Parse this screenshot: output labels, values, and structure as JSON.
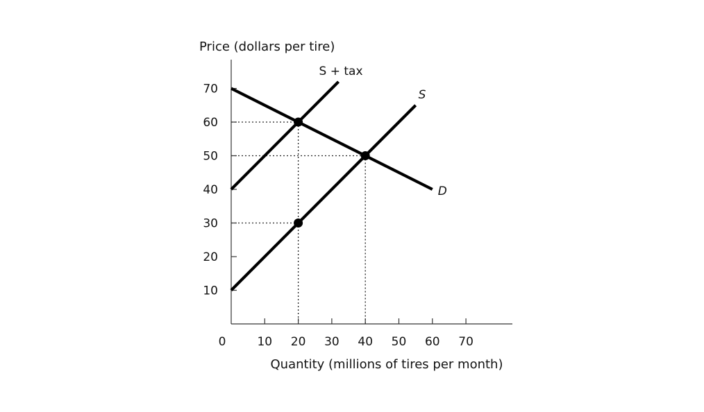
{
  "chart_data": {
    "type": "line",
    "xlabel": "Quantity (millions of tires per month)",
    "ylabel": "Price (dollars per tire)",
    "xlim": [
      0,
      80
    ],
    "ylim": [
      0,
      80
    ],
    "origin_label": "0",
    "x_ticks": [
      10,
      20,
      30,
      40,
      50,
      60,
      70
    ],
    "y_ticks": [
      10,
      20,
      30,
      40,
      50,
      60,
      70
    ],
    "grid": false,
    "series": [
      {
        "name": "D",
        "x": [
          0,
          60
        ],
        "y": [
          70,
          40
        ]
      },
      {
        "name": "S",
        "x": [
          0,
          55
        ],
        "y": [
          10,
          65
        ]
      },
      {
        "name": "S + tax",
        "x": [
          0,
          32
        ],
        "y": [
          40,
          72
        ]
      }
    ],
    "points": [
      {
        "x": 20,
        "y": 60
      },
      {
        "x": 40,
        "y": 50
      },
      {
        "x": 20,
        "y": 30
      }
    ],
    "guides": [
      {
        "x": 20,
        "y": 60
      },
      {
        "x": 40,
        "y": 50
      },
      {
        "x": 20,
        "y": 30
      }
    ],
    "colors": {
      "line": "#000000",
      "axis": "#333333"
    }
  }
}
